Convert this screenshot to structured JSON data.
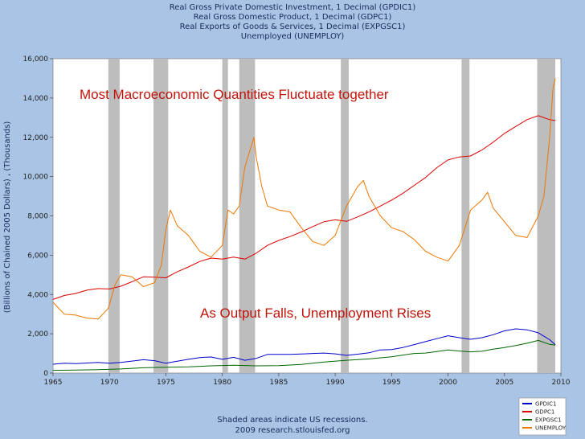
{
  "chart_data": {
    "type": "line",
    "title_lines": [
      "Real Gross Private Domestic Investment, 1 Decimal (GPDIC1)",
      "Real Gross Domestic Product, 1 Decimal (GDPC1)",
      "Real Exports of Goods & Services, 1 Decimal (EXPGSC1)",
      "Unemployed (UNEMPLOY)"
    ],
    "ylabel": "(Billions of Chained 2005 Dollars) , (Thousands)",
    "xlim": [
      1965,
      2010
    ],
    "ylim": [
      0,
      16000
    ],
    "x_ticks": [
      "1965",
      "1970",
      "1975",
      "1980",
      "1985",
      "1990",
      "1995",
      "2000",
      "2005",
      "2010"
    ],
    "y_ticks": [
      "0",
      "2,000",
      "4,000",
      "6,000",
      "8,000",
      "10,000",
      "12,000",
      "14,000",
      "16,000"
    ],
    "recessions": [
      [
        1969.9,
        1970.9
      ],
      [
        1973.9,
        1975.2
      ],
      [
        1980.0,
        1980.5
      ],
      [
        1981.5,
        1982.9
      ],
      [
        1990.5,
        1991.2
      ],
      [
        2001.2,
        2001.9
      ],
      [
        2007.9,
        2009.5
      ]
    ],
    "series": [
      {
        "name": "GPDIC1",
        "color": "#0000cc",
        "x": [
          1965,
          1966,
          1967,
          1968,
          1969,
          1970,
          1971,
          1972,
          1973,
          1974,
          1975,
          1976,
          1977,
          1978,
          1979,
          1980,
          1981,
          1982,
          1983,
          1984,
          1985,
          1986,
          1987,
          1988,
          1989,
          1990,
          1991,
          1992,
          1993,
          1994,
          1995,
          1996,
          1997,
          1998,
          1999,
          2000,
          2001,
          2002,
          2003,
          2004,
          2005,
          2006,
          2007,
          2008,
          2009,
          2009.5
        ],
        "y": [
          450,
          500,
          480,
          510,
          540,
          500,
          540,
          610,
          680,
          630,
          500,
          600,
          700,
          790,
          820,
          700,
          800,
          650,
          750,
          950,
          950,
          950,
          970,
          1000,
          1020,
          980,
          900,
          960,
          1030,
          1180,
          1200,
          1300,
          1450,
          1600,
          1750,
          1900,
          1800,
          1720,
          1800,
          1950,
          2150,
          2250,
          2200,
          2050,
          1700,
          1450
        ]
      },
      {
        "name": "GDPC1",
        "color": "#dd0000",
        "x": [
          1965,
          1966,
          1967,
          1968,
          1969,
          1970,
          1971,
          1972,
          1973,
          1974,
          1975,
          1976,
          1977,
          1978,
          1979,
          1980,
          1981,
          1982,
          1983,
          1984,
          1985,
          1986,
          1987,
          1988,
          1989,
          1990,
          1991,
          1992,
          1993,
          1994,
          1995,
          1996,
          1997,
          1998,
          1999,
          2000,
          2001,
          2002,
          2003,
          2004,
          2005,
          2006,
          2007,
          2008,
          2009,
          2009.5
        ],
        "y": [
          3750,
          3950,
          4050,
          4220,
          4300,
          4280,
          4420,
          4650,
          4900,
          4880,
          4850,
          5150,
          5400,
          5680,
          5850,
          5800,
          5900,
          5800,
          6100,
          6500,
          6750,
          6950,
          7180,
          7450,
          7700,
          7800,
          7720,
          7950,
          8200,
          8500,
          8800,
          9150,
          9550,
          9950,
          10450,
          10850,
          11000,
          11050,
          11350,
          11750,
          12200,
          12550,
          12900,
          13100,
          12900,
          12850
        ]
      },
      {
        "name": "EXPGSC1",
        "color": "#006600",
        "x": [
          1965,
          1967,
          1969,
          1971,
          1973,
          1975,
          1977,
          1979,
          1981,
          1983,
          1985,
          1987,
          1989,
          1991,
          1993,
          1995,
          1997,
          1998,
          2000,
          2001,
          2002,
          2003,
          2004,
          2005,
          2006,
          2007,
          2008,
          2009,
          2009.5
        ],
        "y": [
          140,
          150,
          175,
          210,
          270,
          300,
          320,
          370,
          400,
          370,
          380,
          440,
          560,
          650,
          720,
          830,
          1000,
          1020,
          1180,
          1120,
          1080,
          1110,
          1220,
          1300,
          1400,
          1520,
          1660,
          1460,
          1430
        ]
      },
      {
        "name": "UNEMPLOY",
        "color": "#ee7700",
        "x": [
          1965,
          1966,
          1967,
          1968,
          1969,
          1969.9,
          1970.5,
          1971,
          1972,
          1973,
          1974,
          1974.6,
          1975,
          1975.4,
          1976,
          1977,
          1978,
          1979,
          1980,
          1980.5,
          1981,
          1981.5,
          1982,
          1982.8,
          1983,
          1983.5,
          1984,
          1985,
          1986,
          1987,
          1988,
          1989,
          1990,
          1991,
          1992,
          1992.5,
          1993,
          1994,
          1995,
          1996,
          1997,
          1998,
          1999,
          2000,
          2001,
          2002,
          2003,
          2003.5,
          2004,
          2005,
          2006,
          2007,
          2008,
          2008.5,
          2009,
          2009.3,
          2009.5
        ],
        "y": [
          3600,
          3000,
          2950,
          2800,
          2750,
          3300,
          4500,
          5000,
          4900,
          4400,
          4600,
          5500,
          7300,
          8300,
          7500,
          7000,
          6200,
          5900,
          6500,
          8300,
          8100,
          8500,
          10500,
          12000,
          11000,
          9500,
          8500,
          8300,
          8200,
          7400,
          6700,
          6500,
          7000,
          8500,
          9500,
          9800,
          9000,
          8000,
          7400,
          7200,
          6800,
          6200,
          5900,
          5700,
          6500,
          8300,
          8800,
          9200,
          8400,
          7700,
          7000,
          6900,
          8000,
          9000,
          12000,
          14500,
          15000
        ]
      }
    ],
    "annotations": [
      "Most Macroeconomic Quantities Fluctuate together",
      "As Output Falls, Unemployment Rises"
    ],
    "footer_lines": [
      "Shaded areas indicate US recessions.",
      "2009 research.stlouisfed.org"
    ],
    "legend": {
      "placement": "bottom-right",
      "entries": [
        "GPDIC1",
        "GDPC1",
        "EXPGSC1",
        "UNEMPLOY"
      ]
    },
    "grid": false
  }
}
